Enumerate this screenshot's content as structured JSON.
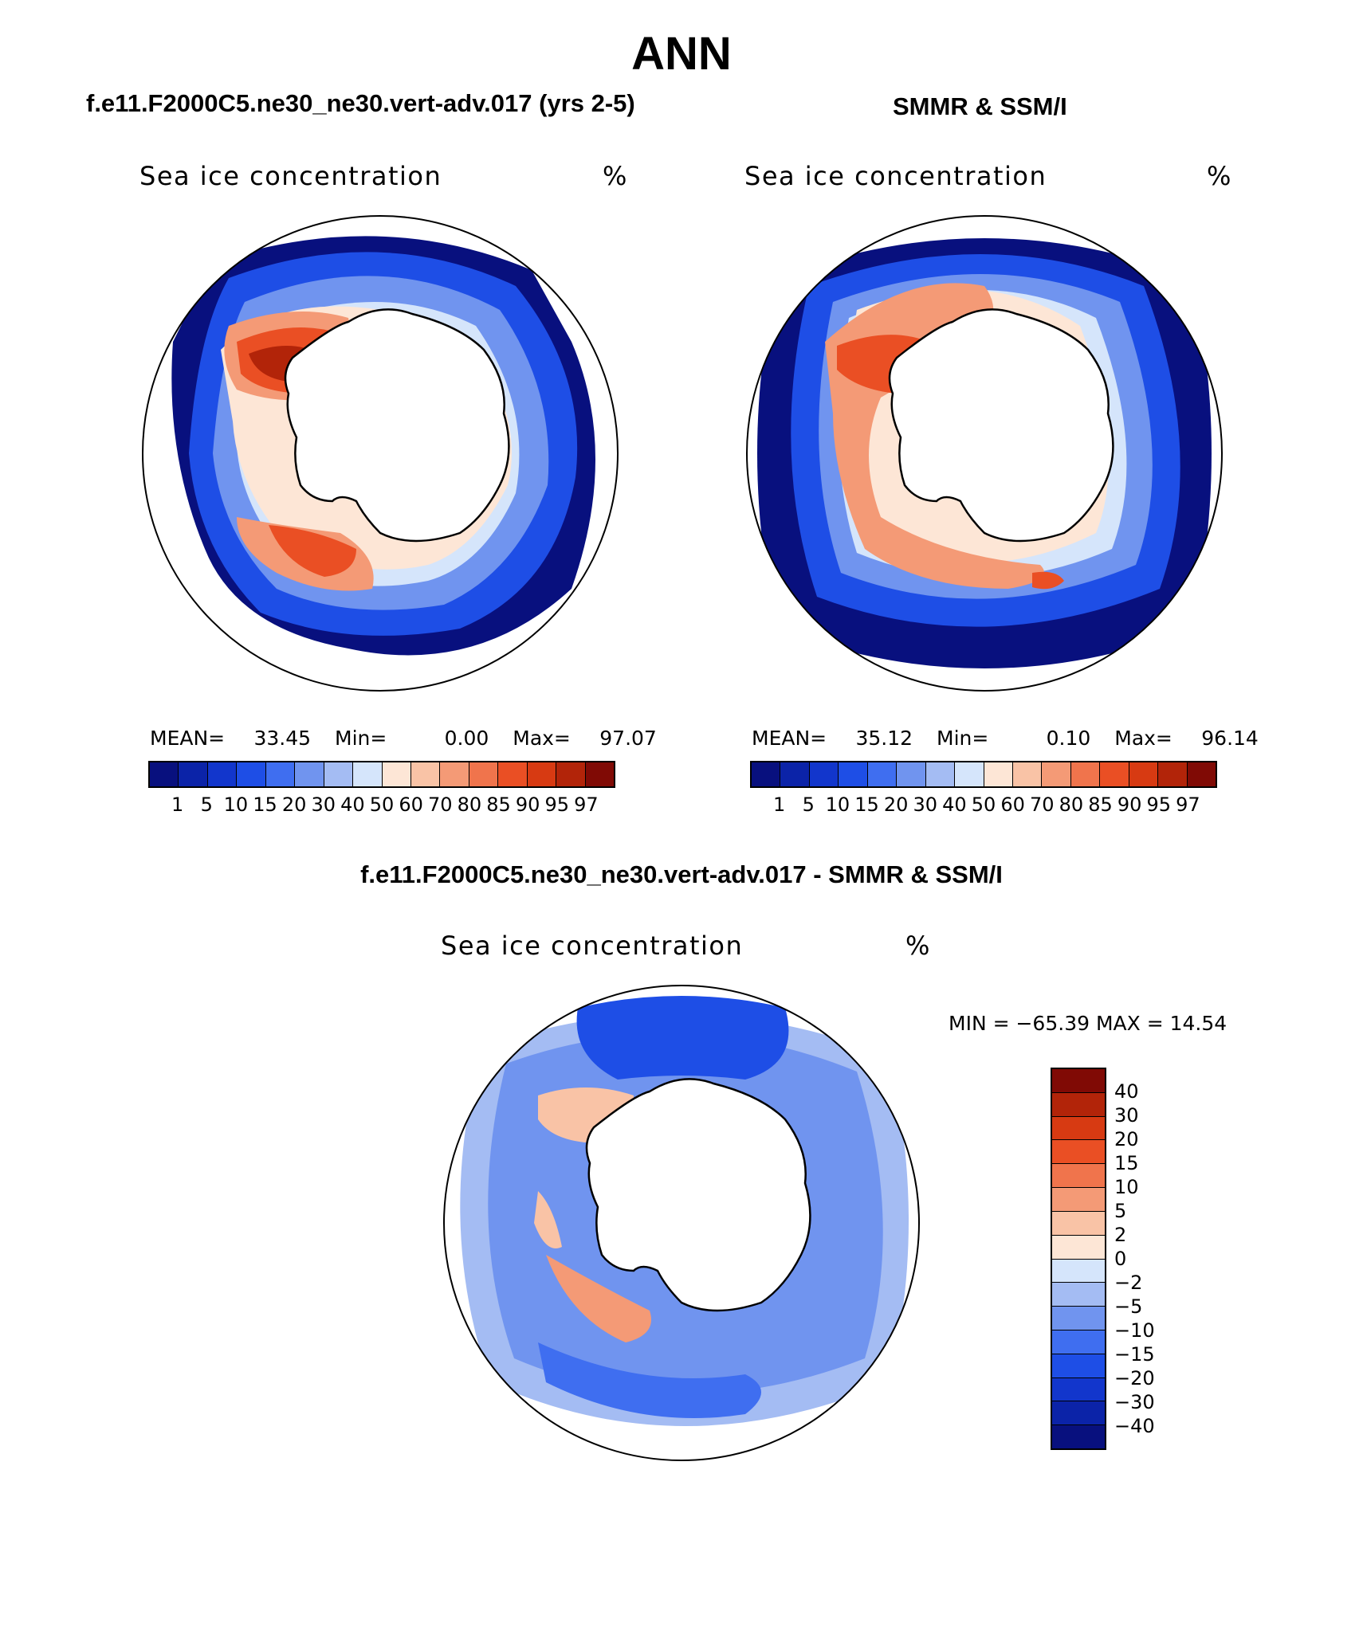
{
  "figure": {
    "title": "ANN"
  },
  "panel_model": {
    "header": "f.e11.F2000C5.ne30_ne30.vert-adv.017 (yrs 2-5)",
    "plot_title": "Sea ice concentration",
    "unit": "%",
    "mean_label": "MEAN=",
    "mean_value": "33.45",
    "min_label": "Min=",
    "min_value": "0.00",
    "max_label": "Max=",
    "max_value": "97.07"
  },
  "panel_obs": {
    "header": "SMMR & SSM/I",
    "plot_title": "Sea ice concentration",
    "unit": "%",
    "mean_label": "MEAN=",
    "mean_value": "35.12",
    "min_label": "Min=",
    "min_value": "0.10",
    "max_label": "Max=",
    "max_value": "96.14"
  },
  "panel_diff": {
    "header": "f.e11.F2000C5.ne30_ne30.vert-adv.017 - SMMR & SSM/I",
    "plot_title": "Sea ice concentration",
    "unit": "%",
    "range_text": "MIN = −65.39 MAX =   14.54"
  },
  "colorbar_abs": {
    "colors": [
      "#08107e",
      "#0b23a8",
      "#1236cc",
      "#1e4ee6",
      "#3f6ef0",
      "#7094ef",
      "#a4bcf3",
      "#d5e5fb",
      "#fde6d6",
      "#f9c3a6",
      "#f49a76",
      "#f0744c",
      "#ea4f24",
      "#d73a12",
      "#b22409",
      "#800a05"
    ],
    "labels": [
      "1",
      "5",
      "10",
      "15",
      "20",
      "30",
      "40",
      "50",
      "60",
      "70",
      "80",
      "85",
      "90",
      "95",
      "97"
    ]
  },
  "colorbar_diff": {
    "colors_top_to_bottom": [
      "#800a05",
      "#b22409",
      "#d73a12",
      "#ea4f24",
      "#f0744c",
      "#f49a76",
      "#f9c3a6",
      "#fde6d6",
      "#d5e5fb",
      "#a4bcf3",
      "#7094ef",
      "#3f6ef0",
      "#1e4ee6",
      "#1236cc",
      "#0b23a8",
      "#08107e"
    ],
    "labels_top_to_bottom": [
      "40",
      "30",
      "20",
      "15",
      "10",
      "5",
      "2",
      "0",
      "−2",
      "−5",
      "−10",
      "−15",
      "−20",
      "−30",
      "−40"
    ]
  },
  "map_colors": {
    "deep_blue": "#08107e",
    "blue": "#1e4ee6",
    "mid_blue": "#7094ef",
    "light_blue": "#d5e5fb",
    "peach": "#fde6d6",
    "salmon": "#f49a76",
    "orange": "#ea4f24",
    "dark_red": "#b22409"
  }
}
